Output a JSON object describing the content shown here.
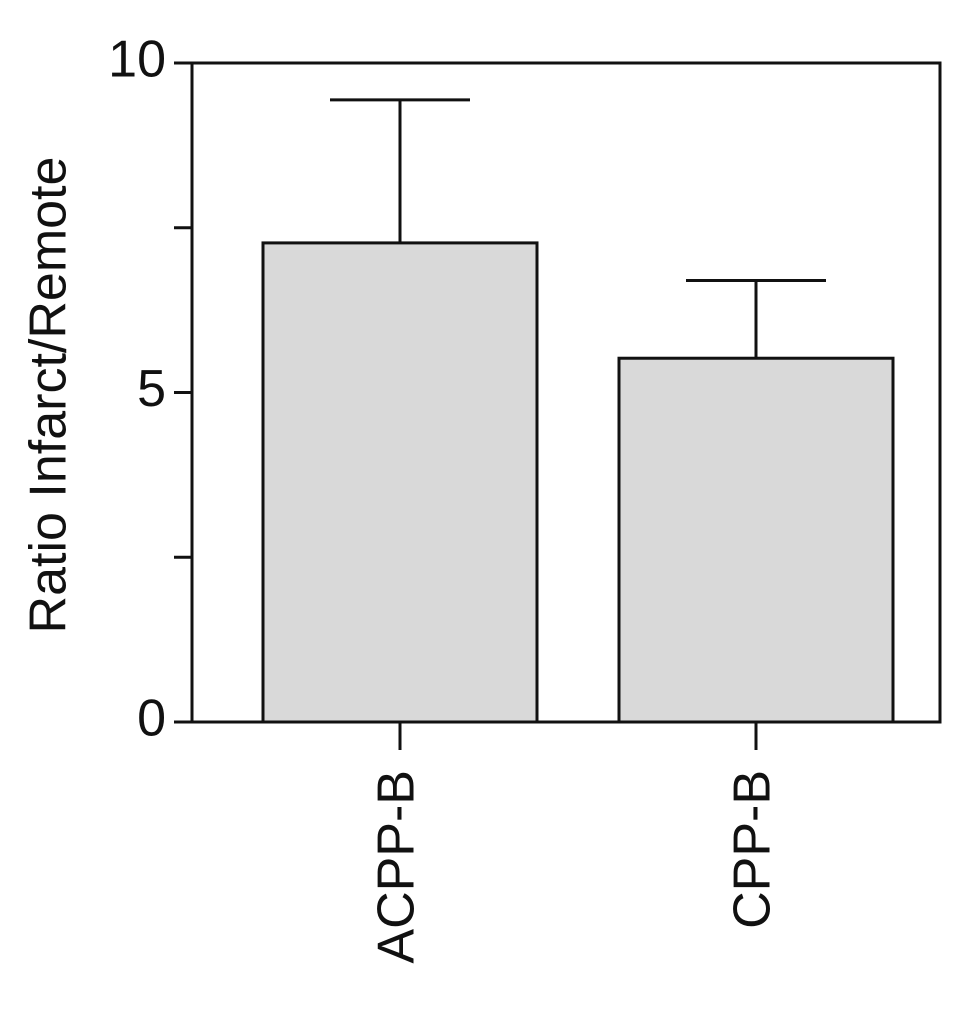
{
  "chart_data": {
    "type": "bar",
    "y_label": "Ratio Infarct/Remote",
    "categories": [
      "ACPP-B",
      "CPP-B"
    ],
    "values": [
      7.27,
      5.52
    ],
    "errors": [
      2.17,
      1.18
    ],
    "color": "#d9d9d9",
    "ylim": [
      0,
      10
    ],
    "yticks": [
      0,
      5,
      10
    ],
    "yminor_ticks": [
      2.5,
      7.5
    ],
    "grid": false
  }
}
